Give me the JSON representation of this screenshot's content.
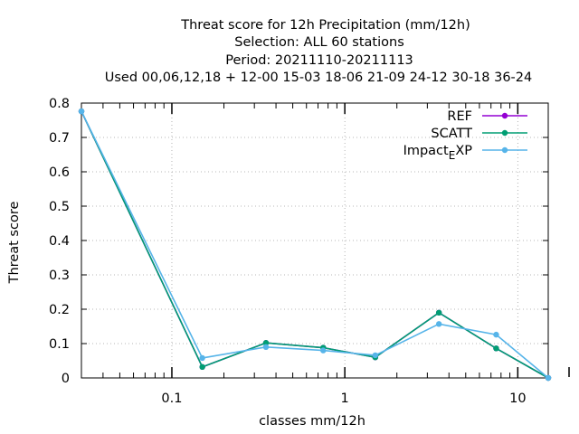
{
  "chart_data": {
    "type": "line",
    "title_lines": [
      "Threat score  for 12h Precipitation (mm/12h)",
      "Selection: ALL     60 stations",
      "Period: 20211110-20211113",
      "Used  00,06,12,18 + 12-00 15-03 18-06 21-09 24-12 30-18 36-24"
    ],
    "xlabel": "classes mm/12h",
    "ylabel": "Threat score",
    "x_scale": "log",
    "xlim": [
      0.03,
      15
    ],
    "ylim": [
      0,
      0.8
    ],
    "x_ticks": [
      {
        "value": 0.1,
        "label": "0.1"
      },
      {
        "value": 1,
        "label": "1"
      },
      {
        "value": 10,
        "label": "10"
      }
    ],
    "y_ticks": [
      {
        "value": 0,
        "label": "0"
      },
      {
        "value": 0.1,
        "label": "0.1"
      },
      {
        "value": 0.2,
        "label": "0.2"
      },
      {
        "value": 0.3,
        "label": "0.3"
      },
      {
        "value": 0.4,
        "label": "0.4"
      },
      {
        "value": 0.5,
        "label": "0.5"
      },
      {
        "value": 0.6,
        "label": "0.6"
      },
      {
        "value": 0.7,
        "label": "0.7"
      },
      {
        "value": 0.8,
        "label": "0.8"
      }
    ],
    "grid": true,
    "legend_position": "top-right",
    "x": [
      0.03,
      0.15,
      0.35,
      0.75,
      1.5,
      3.5,
      7.5,
      15
    ],
    "series": [
      {
        "name": "REF",
        "color": "#9400d3",
        "values": [
          0.776,
          0.032,
          0.102,
          0.088,
          0.06,
          0.19,
          0.086,
          0.0
        ]
      },
      {
        "name": "SCATT",
        "color": "#009e73",
        "values": [
          0.776,
          0.032,
          0.102,
          0.088,
          0.06,
          0.19,
          0.086,
          0.0
        ]
      },
      {
        "name": "Impact",
        "name_subscript": "E",
        "name_suffix": "XP",
        "color": "#56b4e9",
        "values": [
          0.776,
          0.058,
          0.09,
          0.08,
          0.066,
          0.157,
          0.126,
          0.0
        ]
      }
    ]
  }
}
